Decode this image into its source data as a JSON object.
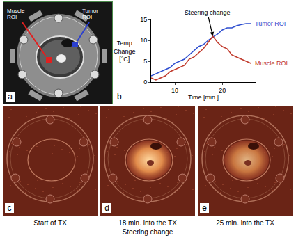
{
  "panels": [
    {
      "letter": "a",
      "labels": [
        "Muscle ROI",
        "Tumor ROI"
      ]
    },
    {
      "letter": "b"
    },
    {
      "letter": "c",
      "caption": [
        "Start of TX"
      ]
    },
    {
      "letter": "d",
      "caption": [
        "18 min. into the TX",
        "Steering change"
      ]
    },
    {
      "letter": "e",
      "caption": [
        "25 min. into the TX"
      ]
    }
  ],
  "chart_data": {
    "type": "line",
    "x_label": "Time [min.]",
    "y_label": "Temp Change [°C]",
    "x": [
      5,
      6,
      7,
      8,
      9,
      10,
      11,
      12,
      13,
      14,
      15,
      16,
      17,
      18,
      19,
      20,
      21,
      22,
      23,
      24,
      25,
      26
    ],
    "series": [
      {
        "name": "Tumor ROI",
        "color": "#2f4fd0",
        "values": [
          1.5,
          2,
          2.5,
          3,
          3.5,
          4.5,
          5,
          5.5,
          6.5,
          7.5,
          8.5,
          9,
          10,
          10.8,
          11.5,
          12.5,
          13,
          13,
          13.5,
          13.8,
          14,
          14
        ]
      },
      {
        "name": "Muscle ROI",
        "color": "#c0392b",
        "values": [
          1,
          0.5,
          1,
          1.5,
          2.5,
          3,
          3.5,
          4,
          5.5,
          6,
          7,
          8,
          9.5,
          11,
          9.5,
          8.5,
          8,
          6.5,
          6,
          5.5,
          5,
          4.5
        ]
      }
    ],
    "annotations": [
      {
        "text": "Steering change",
        "x": 18,
        "y": 11
      }
    ],
    "xlim": [
      5,
      27
    ],
    "xticks": [
      10,
      20
    ],
    "ylim": [
      0,
      15
    ],
    "yticks": [
      0,
      5,
      10,
      15
    ],
    "grid": false
  }
}
